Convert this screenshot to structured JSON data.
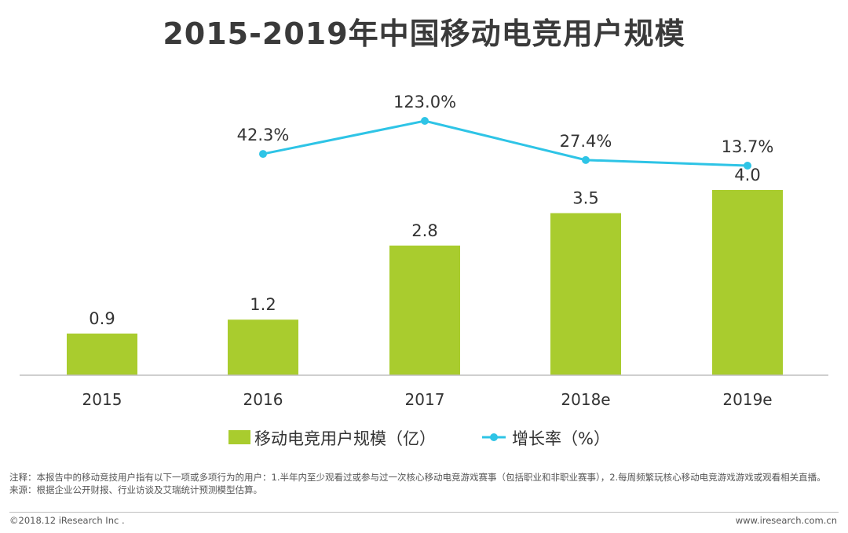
{
  "title": "2015-2019年中国移动电竞用户规模",
  "chart_data": {
    "type": "bar+line",
    "title": "2015-2019年中国移动电竞用户规模",
    "categories": [
      "2015",
      "2016",
      "2017",
      "2018e",
      "2019e"
    ],
    "series": [
      {
        "name": "移动电竞用户规模（亿）",
        "type": "bar",
        "color": "#a9cc2e",
        "values": [
          0.9,
          1.2,
          2.8,
          3.5,
          4.0
        ],
        "labels": [
          "0.9",
          "1.2",
          "2.8",
          "3.5",
          "4.0"
        ]
      },
      {
        "name": "增长率（%）",
        "type": "line",
        "color": "#2ec4e6",
        "values": [
          null,
          42.3,
          123.0,
          27.4,
          13.7
        ],
        "labels": [
          "",
          "42.3%",
          "123.0%",
          "27.4%",
          "13.7%"
        ]
      }
    ],
    "legend_position": "bottom",
    "ylim": [
      0,
      4.0
    ],
    "grid": false
  },
  "notes": {
    "line1": "注释：本报告中的移动竞技用户指有以下一项或多项行为的用户：1.半年内至少观看过或参与过一次核心移动电竞游戏赛事（包括职业和非职业赛事），2.每周频繁玩核心移动电竞游戏游戏或观看相关直播。",
    "line2": "来源：根据企业公开财报、行业访谈及艾瑞统计预测模型估算。"
  },
  "footer": {
    "copyright": "©2018.12 iResearch Inc .",
    "website": "www.iresearch.com.cn"
  }
}
